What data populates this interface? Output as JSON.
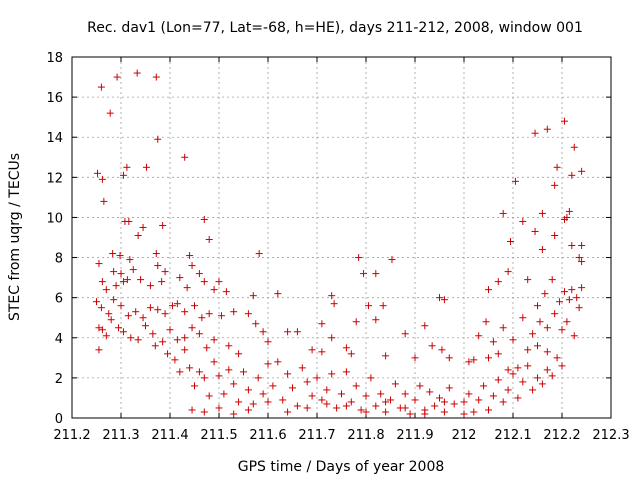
{
  "chart_data": {
    "type": "scatter",
    "title": "Rec. dav1 (Lon=77, Lat=-68, h=HE), days 211-212, 2008, window 001",
    "xlabel": "GPS time / Days of year 2008",
    "ylabel": "STEC from uqrg / TECUs",
    "xlim": [
      211.2,
      212.3
    ],
    "ylim": [
      0,
      18
    ],
    "x_ticks": [
      211.2,
      211.3,
      211.4,
      211.5,
      211.6,
      211.7,
      211.8,
      211.9,
      212.0,
      212.1,
      212.2,
      212.3
    ],
    "x_tick_labels": [
      "211.2",
      "211.3",
      "211.4",
      "211.5",
      "211.6",
      "211.7",
      "211.8",
      "211.9",
      "212",
      "212.1",
      "212.2",
      "212.3"
    ],
    "y_ticks": [
      0,
      2,
      4,
      6,
      8,
      10,
      12,
      14,
      16,
      18
    ],
    "y_tick_labels": [
      "0",
      "2",
      "4",
      "6",
      "8",
      "10",
      "12",
      "14",
      "16",
      "18"
    ],
    "grid": true,
    "marker": "plus",
    "color": "#cc0000",
    "series": [
      {
        "values": [
          [
            211.252,
            12.2
          ],
          [
            211.262,
            11.9
          ],
          [
            211.265,
            10.8
          ],
          [
            211.26,
            16.5
          ],
          [
            211.278,
            15.2
          ],
          [
            211.292,
            17.0
          ],
          [
            211.333,
            17.2
          ],
          [
            211.372,
            17.0
          ],
          [
            211.305,
            12.1
          ],
          [
            211.312,
            12.5
          ],
          [
            211.352,
            12.5
          ],
          [
            211.375,
            13.9
          ],
          [
            211.43,
            13.0
          ],
          [
            211.308,
            9.8
          ],
          [
            211.316,
            9.8
          ],
          [
            211.335,
            9.1
          ],
          [
            211.345,
            9.5
          ],
          [
            211.385,
            9.6
          ],
          [
            211.47,
            9.9
          ],
          [
            211.48,
            8.9
          ],
          [
            211.283,
            8.2
          ],
          [
            211.298,
            8.1
          ],
          [
            211.318,
            7.9
          ],
          [
            211.372,
            8.2
          ],
          [
            211.375,
            7.6
          ],
          [
            211.44,
            8.1
          ],
          [
            211.445,
            7.6
          ],
          [
            211.582,
            8.2
          ],
          [
            211.853,
            7.9
          ],
          [
            211.255,
            7.7
          ],
          [
            211.262,
            6.8
          ],
          [
            211.27,
            6.4
          ],
          [
            211.285,
            7.3
          ],
          [
            211.29,
            6.6
          ],
          [
            211.3,
            7.2
          ],
          [
            211.305,
            6.8
          ],
          [
            211.313,
            6.9
          ],
          [
            211.325,
            7.4
          ],
          [
            211.34,
            6.9
          ],
          [
            211.36,
            6.6
          ],
          [
            211.383,
            6.8
          ],
          [
            211.39,
            7.3
          ],
          [
            211.42,
            7.0
          ],
          [
            211.435,
            6.5
          ],
          [
            211.46,
            7.2
          ],
          [
            211.47,
            6.8
          ],
          [
            211.49,
            6.4
          ],
          [
            211.5,
            6.8
          ],
          [
            211.515,
            6.3
          ],
          [
            211.57,
            6.1
          ],
          [
            211.62,
            6.2
          ],
          [
            211.73,
            6.1
          ],
          [
            211.735,
            5.7
          ],
          [
            211.785,
            8.0
          ],
          [
            211.795,
            7.2
          ],
          [
            211.82,
            7.2
          ],
          [
            211.25,
            5.8
          ],
          [
            211.26,
            5.5
          ],
          [
            211.275,
            5.2
          ],
          [
            211.285,
            5.9
          ],
          [
            211.3,
            5.6
          ],
          [
            211.315,
            5.1
          ],
          [
            211.33,
            5.3
          ],
          [
            211.345,
            5.0
          ],
          [
            211.36,
            5.5
          ],
          [
            211.375,
            5.4
          ],
          [
            211.39,
            5.2
          ],
          [
            211.405,
            5.6
          ],
          [
            211.415,
            5.7
          ],
          [
            211.43,
            5.3
          ],
          [
            211.45,
            5.6
          ],
          [
            211.465,
            5.0
          ],
          [
            211.48,
            5.2
          ],
          [
            211.505,
            5.1
          ],
          [
            211.53,
            5.3
          ],
          [
            211.56,
            5.2
          ],
          [
            211.575,
            4.7
          ],
          [
            211.59,
            4.3
          ],
          [
            211.64,
            4.3
          ],
          [
            211.66,
            4.3
          ],
          [
            211.71,
            4.7
          ],
          [
            211.73,
            4.0
          ],
          [
            211.78,
            4.8
          ],
          [
            211.805,
            5.6
          ],
          [
            211.82,
            4.9
          ],
          [
            211.835,
            5.6
          ],
          [
            211.88,
            4.2
          ],
          [
            211.92,
            4.6
          ],
          [
            211.95,
            6.0
          ],
          [
            211.96,
            5.9
          ],
          [
            211.255,
            4.5
          ],
          [
            211.262,
            4.4
          ],
          [
            211.27,
            4.1
          ],
          [
            211.28,
            4.9
          ],
          [
            211.295,
            4.5
          ],
          [
            211.305,
            4.3
          ],
          [
            211.32,
            4.0
          ],
          [
            211.335,
            3.9
          ],
          [
            211.35,
            4.6
          ],
          [
            211.365,
            4.2
          ],
          [
            211.385,
            3.8
          ],
          [
            211.4,
            4.4
          ],
          [
            211.415,
            3.9
          ],
          [
            211.43,
            4.0
          ],
          [
            211.445,
            4.5
          ],
          [
            211.46,
            4.2
          ],
          [
            211.475,
            3.5
          ],
          [
            211.49,
            3.9
          ],
          [
            211.52,
            3.6
          ],
          [
            211.54,
            3.2
          ],
          [
            211.6,
            3.8
          ],
          [
            211.69,
            3.4
          ],
          [
            211.71,
            3.3
          ],
          [
            211.76,
            3.5
          ],
          [
            211.77,
            3.2
          ],
          [
            211.84,
            3.1
          ],
          [
            211.9,
            3.0
          ],
          [
            211.935,
            3.6
          ],
          [
            211.955,
            3.4
          ],
          [
            211.97,
            3.0
          ],
          [
            211.255,
            3.4
          ],
          [
            211.37,
            3.6
          ],
          [
            211.395,
            3.2
          ],
          [
            211.41,
            2.9
          ],
          [
            211.42,
            2.3
          ],
          [
            211.43,
            3.4
          ],
          [
            211.44,
            2.5
          ],
          [
            211.45,
            1.6
          ],
          [
            211.46,
            2.3
          ],
          [
            211.47,
            2.0
          ],
          [
            211.48,
            1.1
          ],
          [
            211.49,
            2.8
          ],
          [
            211.5,
            2.1
          ],
          [
            211.51,
            1.2
          ],
          [
            211.52,
            2.4
          ],
          [
            211.53,
            1.7
          ],
          [
            211.54,
            0.8
          ],
          [
            211.55,
            2.3
          ],
          [
            211.56,
            1.4
          ],
          [
            211.57,
            0.7
          ],
          [
            211.58,
            2.0
          ],
          [
            211.59,
            1.2
          ],
          [
            211.6,
            2.7
          ],
          [
            211.61,
            1.6
          ],
          [
            211.62,
            2.8
          ],
          [
            211.63,
            0.9
          ],
          [
            211.64,
            2.2
          ],
          [
            211.65,
            1.5
          ],
          [
            211.66,
            0.6
          ],
          [
            211.67,
            2.5
          ],
          [
            211.68,
            1.8
          ],
          [
            211.69,
            1.1
          ],
          [
            211.7,
            2.0
          ],
          [
            211.71,
            0.9
          ],
          [
            211.72,
            1.4
          ],
          [
            211.73,
            2.2
          ],
          [
            211.74,
            0.5
          ],
          [
            211.75,
            1.2
          ],
          [
            211.76,
            2.3
          ],
          [
            211.77,
            0.8
          ],
          [
            211.78,
            1.6
          ],
          [
            211.79,
            0.4
          ],
          [
            211.8,
            1.1
          ],
          [
            211.81,
            2.0
          ],
          [
            211.82,
            0.6
          ],
          [
            211.83,
            1.2
          ],
          [
            211.84,
            0.3
          ],
          [
            211.85,
            0.9
          ],
          [
            211.86,
            1.7
          ],
          [
            211.87,
            0.5
          ],
          [
            211.88,
            1.2
          ],
          [
            211.89,
            0.2
          ],
          [
            211.9,
            0.9
          ],
          [
            211.91,
            1.6
          ],
          [
            211.92,
            0.4
          ],
          [
            211.93,
            1.3
          ],
          [
            211.94,
            0.6
          ],
          [
            211.95,
            1.0
          ],
          [
            211.96,
            0.3
          ],
          [
            211.97,
            1.5
          ],
          [
            211.98,
            0.7
          ],
          [
            211.445,
            0.4
          ],
          [
            211.47,
            0.3
          ],
          [
            211.5,
            0.5
          ],
          [
            211.53,
            0.2
          ],
          [
            211.56,
            0.4
          ],
          [
            211.6,
            0.8
          ],
          [
            211.64,
            0.3
          ],
          [
            211.68,
            0.5
          ],
          [
            211.72,
            0.7
          ],
          [
            211.76,
            0.6
          ],
          [
            211.8,
            0.3
          ],
          [
            211.84,
            0.8
          ],
          [
            211.88,
            0.5
          ],
          [
            211.92,
            0.2
          ],
          [
            211.96,
            0.8
          ],
          [
            212.0,
            0.2
          ],
          [
            212.0,
            0.8
          ],
          [
            212.01,
            1.2
          ],
          [
            212.02,
            0.3
          ],
          [
            212.03,
            0.9
          ],
          [
            212.04,
            1.6
          ],
          [
            212.05,
            0.4
          ],
          [
            212.06,
            1.1
          ],
          [
            212.07,
            1.9
          ],
          [
            212.08,
            0.8
          ],
          [
            212.09,
            1.4
          ],
          [
            212.1,
            2.2
          ],
          [
            212.11,
            1.0
          ],
          [
            212.12,
            1.8
          ],
          [
            212.13,
            2.6
          ],
          [
            212.14,
            1.4
          ],
          [
            212.15,
            2.0
          ],
          [
            212.16,
            1.7
          ],
          [
            212.17,
            2.4
          ],
          [
            212.18,
            2.1
          ],
          [
            212.19,
            3.0
          ],
          [
            212.2,
            2.6
          ],
          [
            212.01,
            2.8
          ],
          [
            212.02,
            2.9
          ],
          [
            212.05,
            3.0
          ],
          [
            212.07,
            3.2
          ],
          [
            212.09,
            2.4
          ],
          [
            212.11,
            2.5
          ],
          [
            212.13,
            3.4
          ],
          [
            212.15,
            3.6
          ],
          [
            212.17,
            3.3
          ],
          [
            212.03,
            4.1
          ],
          [
            212.045,
            4.8
          ],
          [
            212.06,
            3.8
          ],
          [
            212.08,
            4.5
          ],
          [
            212.1,
            3.9
          ],
          [
            212.12,
            5.0
          ],
          [
            212.14,
            4.2
          ],
          [
            212.155,
            4.8
          ],
          [
            212.17,
            4.5
          ],
          [
            212.185,
            5.2
          ],
          [
            212.2,
            4.4
          ],
          [
            212.21,
            4.8
          ],
          [
            212.225,
            4.1
          ],
          [
            212.235,
            5.5
          ],
          [
            212.05,
            6.4
          ],
          [
            212.07,
            6.8
          ],
          [
            212.09,
            7.3
          ],
          [
            212.13,
            6.9
          ],
          [
            212.15,
            5.6
          ],
          [
            212.165,
            6.2
          ],
          [
            212.18,
            6.9
          ],
          [
            212.195,
            5.8
          ],
          [
            212.205,
            6.3
          ],
          [
            212.215,
            5.9
          ],
          [
            212.22,
            6.4
          ],
          [
            212.23,
            6.0
          ],
          [
            212.24,
            6.5
          ],
          [
            212.095,
            8.8
          ],
          [
            212.08,
            10.2
          ],
          [
            212.12,
            9.8
          ],
          [
            212.145,
            9.3
          ],
          [
            212.16,
            8.4
          ],
          [
            212.185,
            9.1
          ],
          [
            212.205,
            9.9
          ],
          [
            212.22,
            8.6
          ],
          [
            212.235,
            8.0
          ],
          [
            212.24,
            7.8
          ],
          [
            212.24,
            8.6
          ],
          [
            212.215,
            10.3
          ],
          [
            212.21,
            10.0
          ],
          [
            212.105,
            11.8
          ],
          [
            212.16,
            10.2
          ],
          [
            212.185,
            11.6
          ],
          [
            212.19,
            12.5
          ],
          [
            212.22,
            12.1
          ],
          [
            212.24,
            12.3
          ],
          [
            212.145,
            14.2
          ],
          [
            212.17,
            14.4
          ],
          [
            212.205,
            14.8
          ],
          [
            212.225,
            13.5
          ]
        ]
      }
    ]
  }
}
